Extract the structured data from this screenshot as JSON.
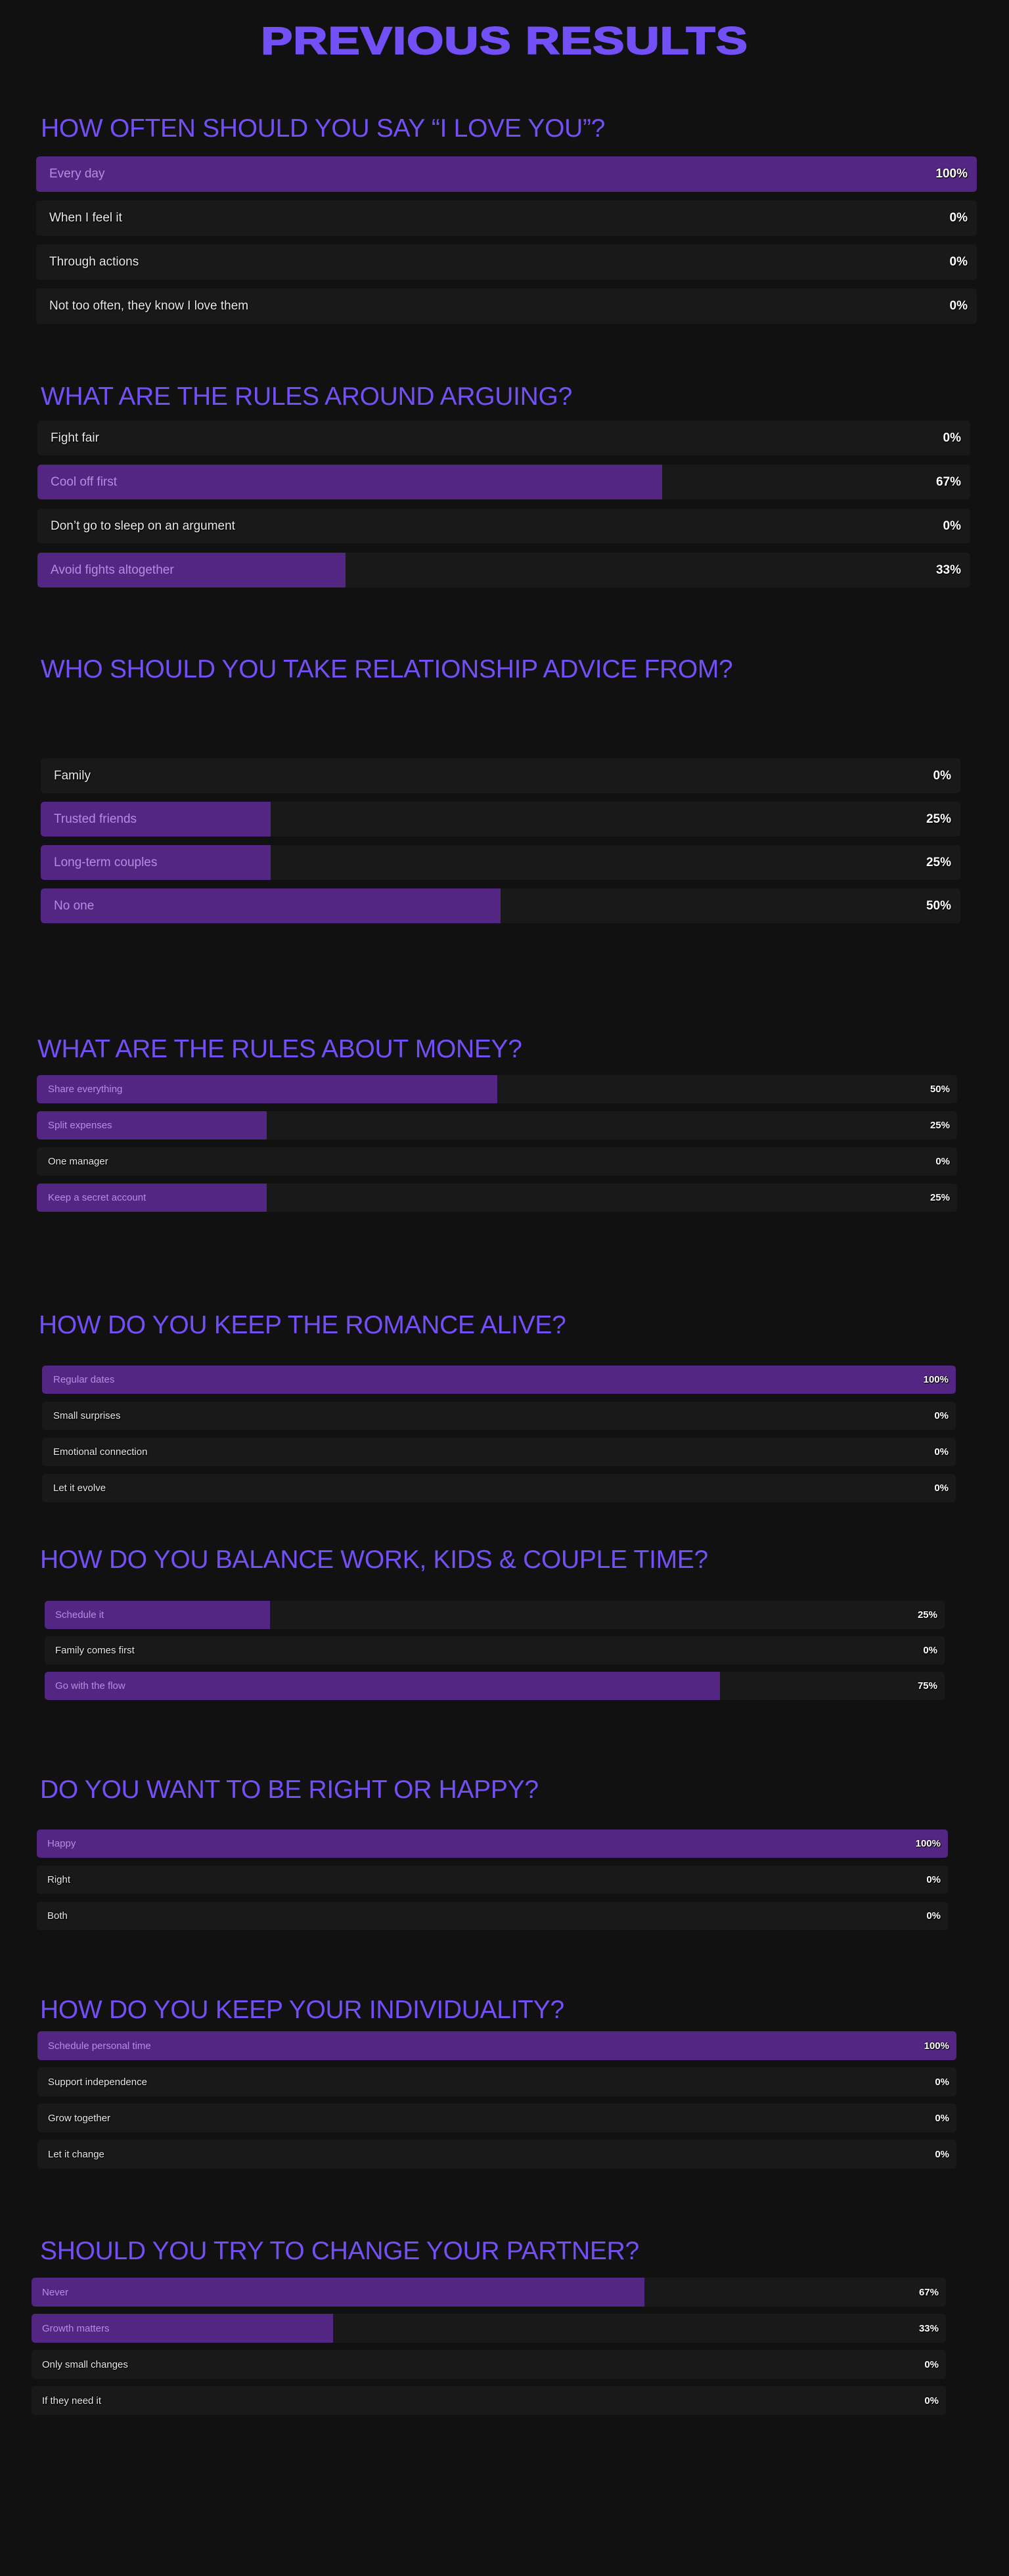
{
  "page": {
    "title": "PREVIOUS RESULTS",
    "colors": {
      "background": "#111111",
      "accent": "#7350f5",
      "bar_fill": "#532683",
      "track": "#191919",
      "voted_label": "#b48ce0",
      "label": "#e9e9e9",
      "percent": "#ffffff"
    }
  },
  "questions": [
    {
      "title": "HOW OFTEN SHOULD YOU SAY “I LOVE YOU”?",
      "options": [
        {
          "label": "Every day",
          "percent": "100%",
          "value": 100
        },
        {
          "label": "When I feel it",
          "percent": "0%",
          "value": 0
        },
        {
          "label": "Through actions",
          "percent": "0%",
          "value": 0
        },
        {
          "label": "Not too often, they know I love them",
          "percent": "0%",
          "value": 0
        }
      ]
    },
    {
      "title": "WHAT ARE THE RULES AROUND ARGUING?",
      "options": [
        {
          "label": "Fight fair",
          "percent": "0%",
          "value": 0
        },
        {
          "label": "Cool off first",
          "percent": "67%",
          "value": 67
        },
        {
          "label": "Don’t go to sleep on an argument",
          "percent": "0%",
          "value": 0
        },
        {
          "label": "Avoid fights altogether",
          "percent": "33%",
          "value": 33
        }
      ]
    },
    {
      "title": "WHO SHOULD YOU TAKE RELATIONSHIP ADVICE FROM?",
      "options": [
        {
          "label": "Family",
          "percent": "0%",
          "value": 0
        },
        {
          "label": "Trusted friends",
          "percent": "25%",
          "value": 25
        },
        {
          "label": "Long-term couples",
          "percent": "25%",
          "value": 25
        },
        {
          "label": "No one",
          "percent": "50%",
          "value": 50
        }
      ]
    },
    {
      "title": "WHAT ARE THE RULES ABOUT MONEY?",
      "options": [
        {
          "label": "Share everything",
          "percent": "50%",
          "value": 50
        },
        {
          "label": "Split expenses",
          "percent": "25%",
          "value": 25
        },
        {
          "label": "One manager",
          "percent": "0%",
          "value": 0
        },
        {
          "label": "Keep a secret account",
          "percent": "25%",
          "value": 25
        }
      ]
    },
    {
      "title": "HOW DO YOU KEEP THE ROMANCE ALIVE?",
      "options": [
        {
          "label": "Regular dates",
          "percent": "100%",
          "value": 100
        },
        {
          "label": "Small surprises",
          "percent": "0%",
          "value": 0
        },
        {
          "label": "Emotional connection",
          "percent": "0%",
          "value": 0
        },
        {
          "label": "Let it evolve",
          "percent": "0%",
          "value": 0
        }
      ]
    },
    {
      "title": "HOW DO YOU BALANCE WORK, KIDS & COUPLE TIME?",
      "options": [
        {
          "label": "Schedule it",
          "percent": "25%",
          "value": 25
        },
        {
          "label": "Family comes first",
          "percent": "0%",
          "value": 0
        },
        {
          "label": "Go with the flow",
          "percent": "75%",
          "value": 75
        }
      ]
    },
    {
      "title": "DO YOU WANT TO BE RIGHT OR HAPPY?",
      "options": [
        {
          "label": "Happy",
          "percent": "100%",
          "value": 100
        },
        {
          "label": "Right",
          "percent": "0%",
          "value": 0
        },
        {
          "label": "Both",
          "percent": "0%",
          "value": 0
        }
      ]
    },
    {
      "title": "HOW DO YOU KEEP YOUR INDIVIDUALITY?",
      "options": [
        {
          "label": "Schedule personal time",
          "percent": "100%",
          "value": 100
        },
        {
          "label": "Support independence",
          "percent": "0%",
          "value": 0
        },
        {
          "label": "Grow together",
          "percent": "0%",
          "value": 0
        },
        {
          "label": "Let it change",
          "percent": "0%",
          "value": 0
        }
      ]
    },
    {
      "title": "SHOULD YOU TRY TO CHANGE YOUR PARTNER?",
      "options": [
        {
          "label": "Never",
          "percent": "67%",
          "value": 67
        },
        {
          "label": "Growth matters",
          "percent": "33%",
          "value": 33
        },
        {
          "label": "Only small changes",
          "percent": "0%",
          "value": 0
        },
        {
          "label": "If they need it",
          "percent": "0%",
          "value": 0
        }
      ]
    }
  ],
  "chart_data": [
    {
      "type": "bar",
      "orientation": "horizontal",
      "title": "HOW OFTEN SHOULD YOU SAY “I LOVE YOU”?",
      "categories": [
        "Every day",
        "When I feel it",
        "Through actions",
        "Not too often, they know I love them"
      ],
      "values": [
        100,
        0,
        0,
        0
      ],
      "xlim": [
        0,
        100
      ],
      "unit": "%"
    },
    {
      "type": "bar",
      "orientation": "horizontal",
      "title": "WHAT ARE THE RULES AROUND ARGUING?",
      "categories": [
        "Fight fair",
        "Cool off first",
        "Don’t go to sleep on an argument",
        "Avoid fights altogether"
      ],
      "values": [
        0,
        67,
        0,
        33
      ],
      "xlim": [
        0,
        100
      ],
      "unit": "%"
    },
    {
      "type": "bar",
      "orientation": "horizontal",
      "title": "WHO SHOULD YOU TAKE RELATIONSHIP ADVICE FROM?",
      "categories": [
        "Family",
        "Trusted friends",
        "Long-term couples",
        "No one"
      ],
      "values": [
        0,
        25,
        25,
        50
      ],
      "xlim": [
        0,
        100
      ],
      "unit": "%"
    },
    {
      "type": "bar",
      "orientation": "horizontal",
      "title": "WHAT ARE THE RULES ABOUT MONEY?",
      "categories": [
        "Share everything",
        "Split expenses",
        "One manager",
        "Keep a secret account"
      ],
      "values": [
        50,
        25,
        0,
        25
      ],
      "xlim": [
        0,
        100
      ],
      "unit": "%"
    },
    {
      "type": "bar",
      "orientation": "horizontal",
      "title": "HOW DO YOU KEEP THE ROMANCE ALIVE?",
      "categories": [
        "Regular dates",
        "Small surprises",
        "Emotional connection",
        "Let it evolve"
      ],
      "values": [
        100,
        0,
        0,
        0
      ],
      "xlim": [
        0,
        100
      ],
      "unit": "%"
    },
    {
      "type": "bar",
      "orientation": "horizontal",
      "title": "HOW DO YOU BALANCE WORK, KIDS & COUPLE TIME?",
      "categories": [
        "Schedule it",
        "Family comes first",
        "Go with the flow"
      ],
      "values": [
        25,
        0,
        75
      ],
      "xlim": [
        0,
        100
      ],
      "unit": "%"
    },
    {
      "type": "bar",
      "orientation": "horizontal",
      "title": "DO YOU WANT TO BE RIGHT OR HAPPY?",
      "categories": [
        "Happy",
        "Right",
        "Both"
      ],
      "values": [
        100,
        0,
        0
      ],
      "xlim": [
        0,
        100
      ],
      "unit": "%"
    },
    {
      "type": "bar",
      "orientation": "horizontal",
      "title": "HOW DO YOU KEEP YOUR INDIVIDUALITY?",
      "categories": [
        "Schedule personal time",
        "Support independence",
        "Grow together",
        "Let it change"
      ],
      "values": [
        100,
        0,
        0,
        0
      ],
      "xlim": [
        0,
        100
      ],
      "unit": "%"
    },
    {
      "type": "bar",
      "orientation": "horizontal",
      "title": "SHOULD YOU TRY TO CHANGE YOUR PARTNER?",
      "categories": [
        "Never",
        "Growth matters",
        "Only small changes",
        "If they need it"
      ],
      "values": [
        67,
        33,
        0,
        0
      ],
      "xlim": [
        0,
        100
      ],
      "unit": "%"
    }
  ]
}
